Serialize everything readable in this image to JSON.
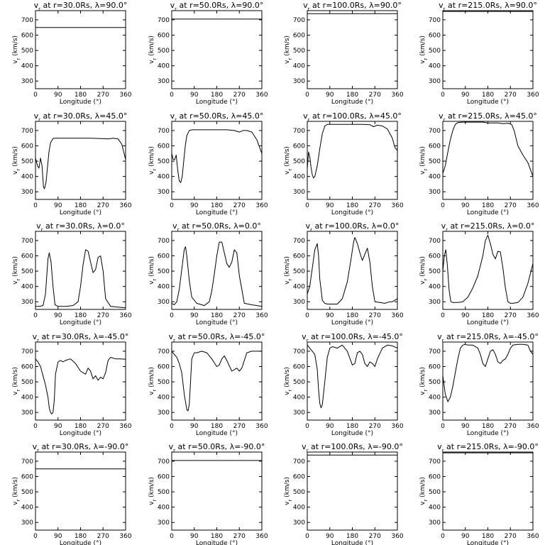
{
  "chart_data": [
    {
      "type": "line",
      "title": "v_r at r=30.0Rs, λ=90.0°",
      "xlabel": "Longitude (°)",
      "ylabel": "v_r (km/s)",
      "xlim": [
        0,
        360
      ],
      "ylim": [
        250,
        760
      ],
      "xticks": [
        0,
        90,
        180,
        270,
        360
      ],
      "yticks": [
        300,
        400,
        500,
        600,
        700
      ],
      "x": [
        0,
        360
      ],
      "y": [
        650,
        650
      ]
    },
    {
      "type": "line",
      "title": "v_r at r=50.0Rs, λ=90.0°",
      "xlabel": "Longitude (°)",
      "ylabel": "v_r (km/s)",
      "xlim": [
        0,
        360
      ],
      "ylim": [
        250,
        760
      ],
      "xticks": [
        0,
        90,
        180,
        270,
        360
      ],
      "yticks": [
        300,
        400,
        500,
        600,
        700
      ],
      "x": [
        0,
        360
      ],
      "y": [
        705,
        705
      ]
    },
    {
      "type": "line",
      "title": "v_r at r=100.0Rs, λ=90.0°",
      "xlabel": "Longitude (°)",
      "ylabel": "v_r (km/s)",
      "xlim": [
        0,
        360
      ],
      "ylim": [
        250,
        760
      ],
      "xticks": [
        0,
        90,
        180,
        270,
        360
      ],
      "yticks": [
        300,
        400,
        500,
        600,
        700
      ],
      "x": [
        0,
        360
      ],
      "y": [
        740,
        740
      ]
    },
    {
      "type": "line",
      "title": "v_r at r=215.0Rs, λ=90.0°",
      "xlabel": "Longitude (°)",
      "ylabel": "v_r (km/s)",
      "xlim": [
        0,
        360
      ],
      "ylim": [
        250,
        760
      ],
      "xticks": [
        0,
        90,
        180,
        270,
        360
      ],
      "yticks": [
        300,
        400,
        500,
        600,
        700
      ],
      "x": [
        0,
        360
      ],
      "y": [
        755,
        755
      ]
    },
    {
      "type": "line",
      "title": "v_r at r=30.0Rs, λ=45.0°",
      "xlabel": "Longitude (°)",
      "ylabel": "v_r (km/s)",
      "xlim": [
        0,
        360
      ],
      "ylim": [
        250,
        760
      ],
      "xticks": [
        0,
        90,
        180,
        270,
        360
      ],
      "yticks": [
        300,
        400,
        500,
        600,
        700
      ],
      "x": [
        0,
        8,
        14,
        20,
        26,
        32,
        36,
        42,
        48,
        54,
        60,
        70,
        80,
        100,
        140,
        180,
        220,
        260,
        290,
        310,
        330,
        345,
        360
      ],
      "y": [
        520,
        470,
        455,
        520,
        470,
        330,
        320,
        360,
        460,
        560,
        620,
        648,
        650,
        650,
        650,
        650,
        650,
        648,
        645,
        650,
        645,
        610,
        510
      ]
    },
    {
      "type": "line",
      "title": "v_r at r=50.0Rs, λ=45.0°",
      "xlabel": "Longitude (°)",
      "ylabel": "v_r (km/s)",
      "xlim": [
        0,
        360
      ],
      "ylim": [
        250,
        760
      ],
      "xticks": [
        0,
        90,
        180,
        270,
        360
      ],
      "yticks": [
        300,
        400,
        500,
        600,
        700
      ],
      "x": [
        0,
        6,
        12,
        18,
        24,
        30,
        36,
        42,
        48,
        54,
        60,
        70,
        80,
        100,
        140,
        180,
        220,
        250,
        270,
        285,
        300,
        320,
        340,
        360
      ],
      "y": [
        550,
        510,
        510,
        540,
        440,
        370,
        360,
        400,
        500,
        600,
        665,
        700,
        705,
        705,
        705,
        705,
        705,
        700,
        690,
        700,
        700,
        690,
        640,
        550
      ]
    },
    {
      "type": "line",
      "title": "v_r at r=100.0Rs, λ=45.0°",
      "xlabel": "Longitude (°)",
      "ylabel": "v_r (km/s)",
      "xlim": [
        0,
        360
      ],
      "ylim": [
        250,
        760
      ],
      "xticks": [
        0,
        90,
        180,
        270,
        360
      ],
      "yticks": [
        300,
        400,
        500,
        600,
        700
      ],
      "x": [
        0,
        5,
        10,
        15,
        20,
        25,
        30,
        40,
        50,
        60,
        70,
        80,
        100,
        140,
        180,
        220,
        250,
        265,
        280,
        300,
        320,
        340,
        350,
        360
      ],
      "y": [
        450,
        560,
        530,
        460,
        410,
        390,
        400,
        470,
        580,
        680,
        730,
        740,
        740,
        740,
        740,
        740,
        738,
        725,
        735,
        730,
        710,
        650,
        590,
        570
      ]
    },
    {
      "type": "line",
      "title": "v_r at r=215.0Rs, λ=45.0°",
      "xlabel": "Longitude (°)",
      "ylabel": "v_r (km/s)",
      "xlim": [
        0,
        360
      ],
      "ylim": [
        250,
        760
      ],
      "xticks": [
        0,
        90,
        180,
        270,
        360
      ],
      "yticks": [
        300,
        400,
        500,
        600,
        700
      ],
      "x": [
        0,
        10,
        20,
        30,
        40,
        50,
        60,
        80,
        100,
        140,
        160,
        180,
        200,
        220,
        240,
        260,
        275,
        285,
        300,
        320,
        340,
        360
      ],
      "y": [
        420,
        470,
        560,
        640,
        700,
        740,
        752,
        755,
        755,
        755,
        755,
        750,
        750,
        750,
        745,
        748,
        740,
        700,
        600,
        540,
        490,
        400
      ]
    },
    {
      "type": "line",
      "title": "v_r at r=30.0Rs, λ=0.0°",
      "xlabel": "Longitude (°)",
      "ylabel": "v_r (km/s)",
      "xlim": [
        0,
        360
      ],
      "ylim": [
        250,
        760
      ],
      "xticks": [
        0,
        90,
        180,
        270,
        360
      ],
      "yticks": [
        300,
        400,
        500,
        600,
        700
      ],
      "x": [
        0,
        15,
        30,
        40,
        45,
        50,
        55,
        62,
        70,
        78,
        90,
        120,
        150,
        170,
        180,
        190,
        200,
        210,
        220,
        230,
        240,
        250,
        260,
        270,
        280,
        300,
        330,
        360
      ],
      "y": [
        270,
        270,
        275,
        350,
        470,
        580,
        620,
        560,
        400,
        280,
        270,
        270,
        275,
        300,
        400,
        540,
        640,
        630,
        560,
        490,
        510,
        590,
        600,
        500,
        320,
        270,
        265,
        260
      ]
    },
    {
      "type": "line",
      "title": "v_r at r=50.0Rs, λ=0.0°",
      "xlabel": "Longitude (°)",
      "ylabel": "v_r (km/s)",
      "xlim": [
        0,
        360
      ],
      "ylim": [
        250,
        760
      ],
      "xticks": [
        0,
        90,
        180,
        270,
        360
      ],
      "yticks": [
        300,
        400,
        500,
        600,
        700
      ],
      "x": [
        0,
        10,
        20,
        30,
        40,
        50,
        55,
        60,
        70,
        80,
        100,
        130,
        150,
        160,
        170,
        180,
        190,
        200,
        210,
        220,
        230,
        240,
        250,
        260,
        270,
        290,
        320,
        340,
        360
      ],
      "y": [
        290,
        280,
        300,
        380,
        510,
        640,
        660,
        600,
        440,
        330,
        290,
        275,
        300,
        370,
        480,
        600,
        690,
        690,
        620,
        550,
        525,
        560,
        640,
        620,
        470,
        290,
        280,
        275,
        270
      ]
    },
    {
      "type": "line",
      "title": "v_r at r=100.0Rs, λ=0.0°",
      "xlabel": "Longitude (°)",
      "ylabel": "v_r (km/s)",
      "xlim": [
        0,
        360
      ],
      "ylim": [
        250,
        760
      ],
      "xticks": [
        0,
        90,
        180,
        270,
        360
      ],
      "yticks": [
        300,
        400,
        500,
        600,
        700
      ],
      "x": [
        0,
        10,
        20,
        30,
        40,
        45,
        50,
        60,
        70,
        80,
        100,
        120,
        140,
        160,
        175,
        185,
        190,
        200,
        210,
        220,
        230,
        240,
        250,
        260,
        270,
        290,
        310,
        330,
        340,
        360
      ],
      "y": [
        350,
        400,
        520,
        640,
        680,
        600,
        450,
        310,
        290,
        285,
        285,
        285,
        320,
        430,
        580,
        690,
        720,
        680,
        620,
        570,
        610,
        650,
        560,
        400,
        300,
        295,
        290,
        300,
        300,
        320
      ]
    },
    {
      "type": "line",
      "title": "v_r at r=215.0Rs, λ=0.0°",
      "xlabel": "Longitude (°)",
      "ylabel": "v_r (km/s)",
      "xlim": [
        0,
        360
      ],
      "ylim": [
        250,
        760
      ],
      "xticks": [
        0,
        90,
        180,
        270,
        360
      ],
      "yticks": [
        300,
        400,
        500,
        600,
        700
      ],
      "x": [
        0,
        6,
        12,
        18,
        25,
        32,
        40,
        60,
        80,
        100,
        120,
        140,
        160,
        170,
        180,
        190,
        200,
        210,
        220,
        230,
        240,
        250,
        260,
        270,
        280,
        300,
        320,
        340,
        360
      ],
      "y": [
        500,
        600,
        640,
        540,
        380,
        300,
        295,
        295,
        300,
        330,
        390,
        470,
        600,
        700,
        735,
        680,
        610,
        580,
        630,
        625,
        520,
        390,
        300,
        290,
        290,
        295,
        330,
        420,
        550
      ]
    },
    {
      "type": "line",
      "title": "v_r at r=30.0Rs, λ=-45.0°",
      "xlabel": "Longitude (°)",
      "ylabel": "v_r (km/s)",
      "xlim": [
        0,
        360
      ],
      "ylim": [
        250,
        760
      ],
      "xticks": [
        0,
        90,
        180,
        270,
        360
      ],
      "yticks": [
        300,
        400,
        500,
        600,
        700
      ],
      "x": [
        0,
        10,
        20,
        30,
        40,
        50,
        55,
        60,
        65,
        70,
        75,
        80,
        90,
        100,
        110,
        120,
        140,
        160,
        180,
        200,
        210,
        220,
        230,
        240,
        250,
        260,
        270,
        280,
        290,
        300,
        320,
        340,
        360
      ],
      "y": [
        650,
        630,
        600,
        540,
        480,
        400,
        330,
        300,
        290,
        300,
        380,
        550,
        630,
        640,
        630,
        640,
        650,
        620,
        570,
        550,
        590,
        570,
        520,
        540,
        510,
        530,
        520,
        560,
        640,
        660,
        650,
        650,
        648
      ]
    },
    {
      "type": "line",
      "title": "v_r at r=50.0Rs, λ=-45.0°",
      "xlabel": "Longitude (°)",
      "ylabel": "v_r (km/s)",
      "xlim": [
        0,
        360
      ],
      "ylim": [
        250,
        760
      ],
      "xticks": [
        0,
        90,
        180,
        270,
        360
      ],
      "yticks": [
        300,
        400,
        500,
        600,
        700
      ],
      "x": [
        0,
        10,
        20,
        30,
        40,
        50,
        60,
        65,
        70,
        75,
        80,
        90,
        100,
        120,
        140,
        160,
        180,
        190,
        200,
        210,
        220,
        240,
        260,
        270,
        280,
        300,
        320,
        340,
        360
      ],
      "y": [
        700,
        680,
        660,
        620,
        560,
        420,
        320,
        310,
        350,
        500,
        650,
        690,
        690,
        700,
        690,
        650,
        600,
        610,
        650,
        670,
        640,
        570,
        590,
        570,
        590,
        690,
        700,
        700,
        700
      ]
    },
    {
      "type": "line",
      "title": "v_r at r=100.0Rs, λ=-45.0°",
      "xlabel": "Longitude (°)",
      "ylabel": "v_r (km/s)",
      "xlim": [
        0,
        360
      ],
      "ylim": [
        250,
        760
      ],
      "xticks": [
        0,
        90,
        180,
        270,
        360
      ],
      "yticks": [
        300,
        400,
        500,
        600,
        700
      ],
      "x": [
        0,
        10,
        20,
        30,
        40,
        45,
        50,
        55,
        60,
        70,
        80,
        90,
        100,
        120,
        140,
        160,
        180,
        190,
        200,
        210,
        220,
        230,
        240,
        250,
        260,
        270,
        280,
        300,
        320,
        340,
        360
      ],
      "y": [
        740,
        720,
        700,
        680,
        580,
        450,
        360,
        330,
        350,
        500,
        660,
        720,
        730,
        720,
        740,
        700,
        610,
        620,
        690,
        700,
        680,
        620,
        600,
        630,
        620,
        600,
        650,
        720,
        740,
        735,
        720
      ]
    },
    {
      "type": "line",
      "title": "v_r at r=215.0Rs, λ=-45.0°",
      "xlabel": "Longitude (°)",
      "ylabel": "v_r (km/s)",
      "xlim": [
        0,
        360
      ],
      "ylim": [
        250,
        760
      ],
      "xticks": [
        0,
        90,
        180,
        270,
        360
      ],
      "yticks": [
        300,
        400,
        500,
        600,
        700
      ],
      "x": [
        0,
        10,
        20,
        30,
        40,
        50,
        60,
        70,
        80,
        90,
        100,
        120,
        140,
        150,
        160,
        170,
        180,
        190,
        200,
        210,
        220,
        230,
        240,
        250,
        260,
        270,
        280,
        300,
        320,
        340,
        350,
        360
      ],
      "y": [
        540,
        420,
        370,
        400,
        470,
        560,
        650,
        720,
        740,
        745,
        740,
        740,
        720,
        680,
        620,
        600,
        650,
        700,
        710,
        680,
        630,
        620,
        640,
        650,
        680,
        720,
        740,
        745,
        745,
        740,
        700,
        680
      ]
    },
    {
      "type": "line",
      "title": "v_r at r=30.0Rs, λ=-90.0°",
      "xlabel": "Longitude (°)",
      "ylabel": "v_r (km/s)",
      "xlim": [
        0,
        360
      ],
      "ylim": [
        250,
        760
      ],
      "xticks": [
        0,
        90,
        180,
        270,
        360
      ],
      "yticks": [
        300,
        400,
        500,
        600,
        700
      ],
      "x": [
        0,
        360
      ],
      "y": [
        650,
        650
      ]
    },
    {
      "type": "line",
      "title": "v_r at r=50.0Rs, λ=-90.0°",
      "xlabel": "Longitude (°)",
      "ylabel": "v_r (km/s)",
      "xlim": [
        0,
        360
      ],
      "ylim": [
        250,
        760
      ],
      "xticks": [
        0,
        90,
        180,
        270,
        360
      ],
      "yticks": [
        300,
        400,
        500,
        600,
        700
      ],
      "x": [
        0,
        360
      ],
      "y": [
        705,
        705
      ]
    },
    {
      "type": "line",
      "title": "v_r at r=100.0Rs, λ=-90.0°",
      "xlabel": "Longitude (°)",
      "ylabel": "v_r (km/s)",
      "xlim": [
        0,
        360
      ],
      "ylim": [
        250,
        760
      ],
      "xticks": [
        0,
        90,
        180,
        270,
        360
      ],
      "yticks": [
        300,
        400,
        500,
        600,
        700
      ],
      "x": [
        0,
        360
      ],
      "y": [
        740,
        740
      ]
    },
    {
      "type": "line",
      "title": "v_r at r=215.0Rs, λ=-90.0°",
      "xlabel": "Longitude (°)",
      "ylabel": "v_r (km/s)",
      "xlim": [
        0,
        360
      ],
      "ylim": [
        250,
        760
      ],
      "xticks": [
        0,
        90,
        180,
        270,
        360
      ],
      "yticks": [
        300,
        400,
        500,
        600,
        700
      ],
      "x": [
        0,
        360
      ],
      "y": [
        755,
        755
      ]
    }
  ]
}
